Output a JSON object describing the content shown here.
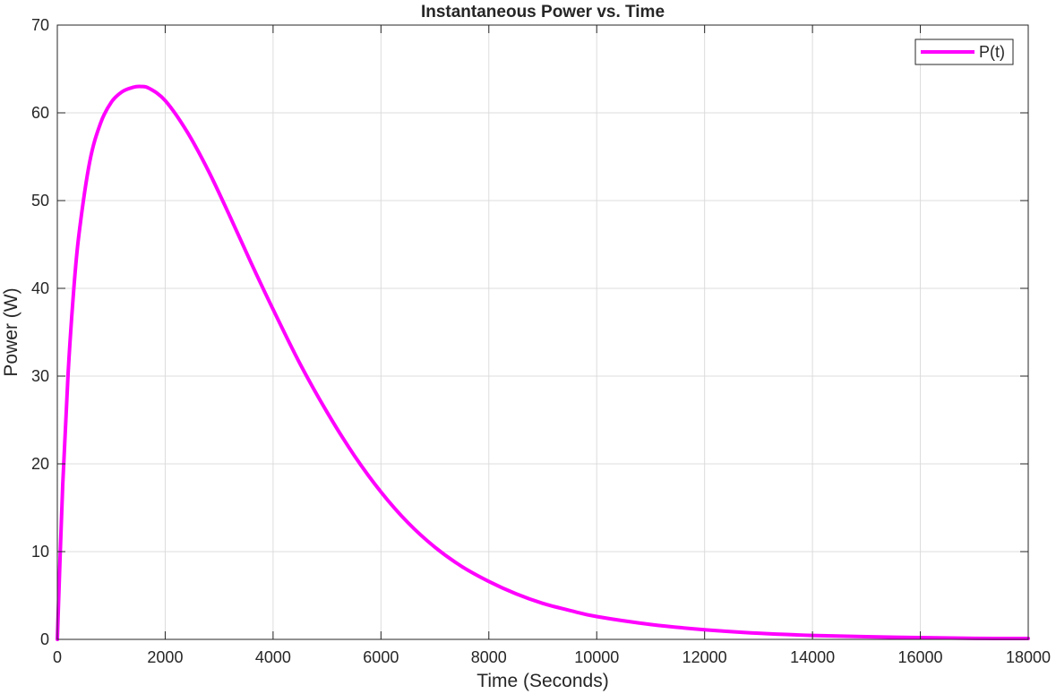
{
  "chart_data": {
    "type": "line",
    "title": "Instantaneous Power vs. Time",
    "xlabel": "Time (Seconds)",
    "ylabel": "Power (W)",
    "xlim": [
      0,
      18000
    ],
    "ylim": [
      0,
      70
    ],
    "x_ticks": [
      0,
      2000,
      4000,
      6000,
      8000,
      10000,
      12000,
      14000,
      16000,
      18000
    ],
    "x_tick_labels": [
      "0",
      "2000",
      "4000",
      "6000",
      "8000",
      "10000",
      "12000",
      "14000",
      "16000",
      "18000"
    ],
    "y_ticks": [
      0,
      10,
      20,
      30,
      40,
      50,
      60,
      70
    ],
    "y_tick_labels": [
      "0",
      "10",
      "20",
      "30",
      "40",
      "50",
      "60",
      "70"
    ],
    "grid": true,
    "legend_position": "top-right",
    "series": [
      {
        "name": "P(t)",
        "color": "#ff00ff",
        "x": [
          0,
          100,
          200,
          300,
          400,
          600,
          800,
          1000,
          1200,
          1400,
          1550,
          1700,
          2000,
          2400,
          2800,
          3200,
          3600,
          4000,
          4500,
          5000,
          5500,
          6000,
          6500,
          7000,
          7500,
          8000,
          8500,
          9000,
          9500,
          10000,
          11000,
          12000,
          13000,
          14000,
          15000,
          16000,
          17000,
          18000
        ],
        "y": [
          0,
          17.6,
          30.3,
          39.5,
          46.1,
          54.4,
          58.8,
          61.2,
          62.4,
          62.9,
          63.0,
          62.8,
          61.4,
          57.9,
          53.4,
          48.2,
          42.8,
          37.6,
          31.4,
          25.9,
          21.0,
          16.8,
          13.3,
          10.5,
          8.3,
          6.6,
          5.2,
          4.1,
          3.3,
          2.6,
          1.7,
          1.1,
          0.7,
          0.45,
          0.3,
          0.2,
          0.12,
          0.1
        ]
      }
    ]
  }
}
